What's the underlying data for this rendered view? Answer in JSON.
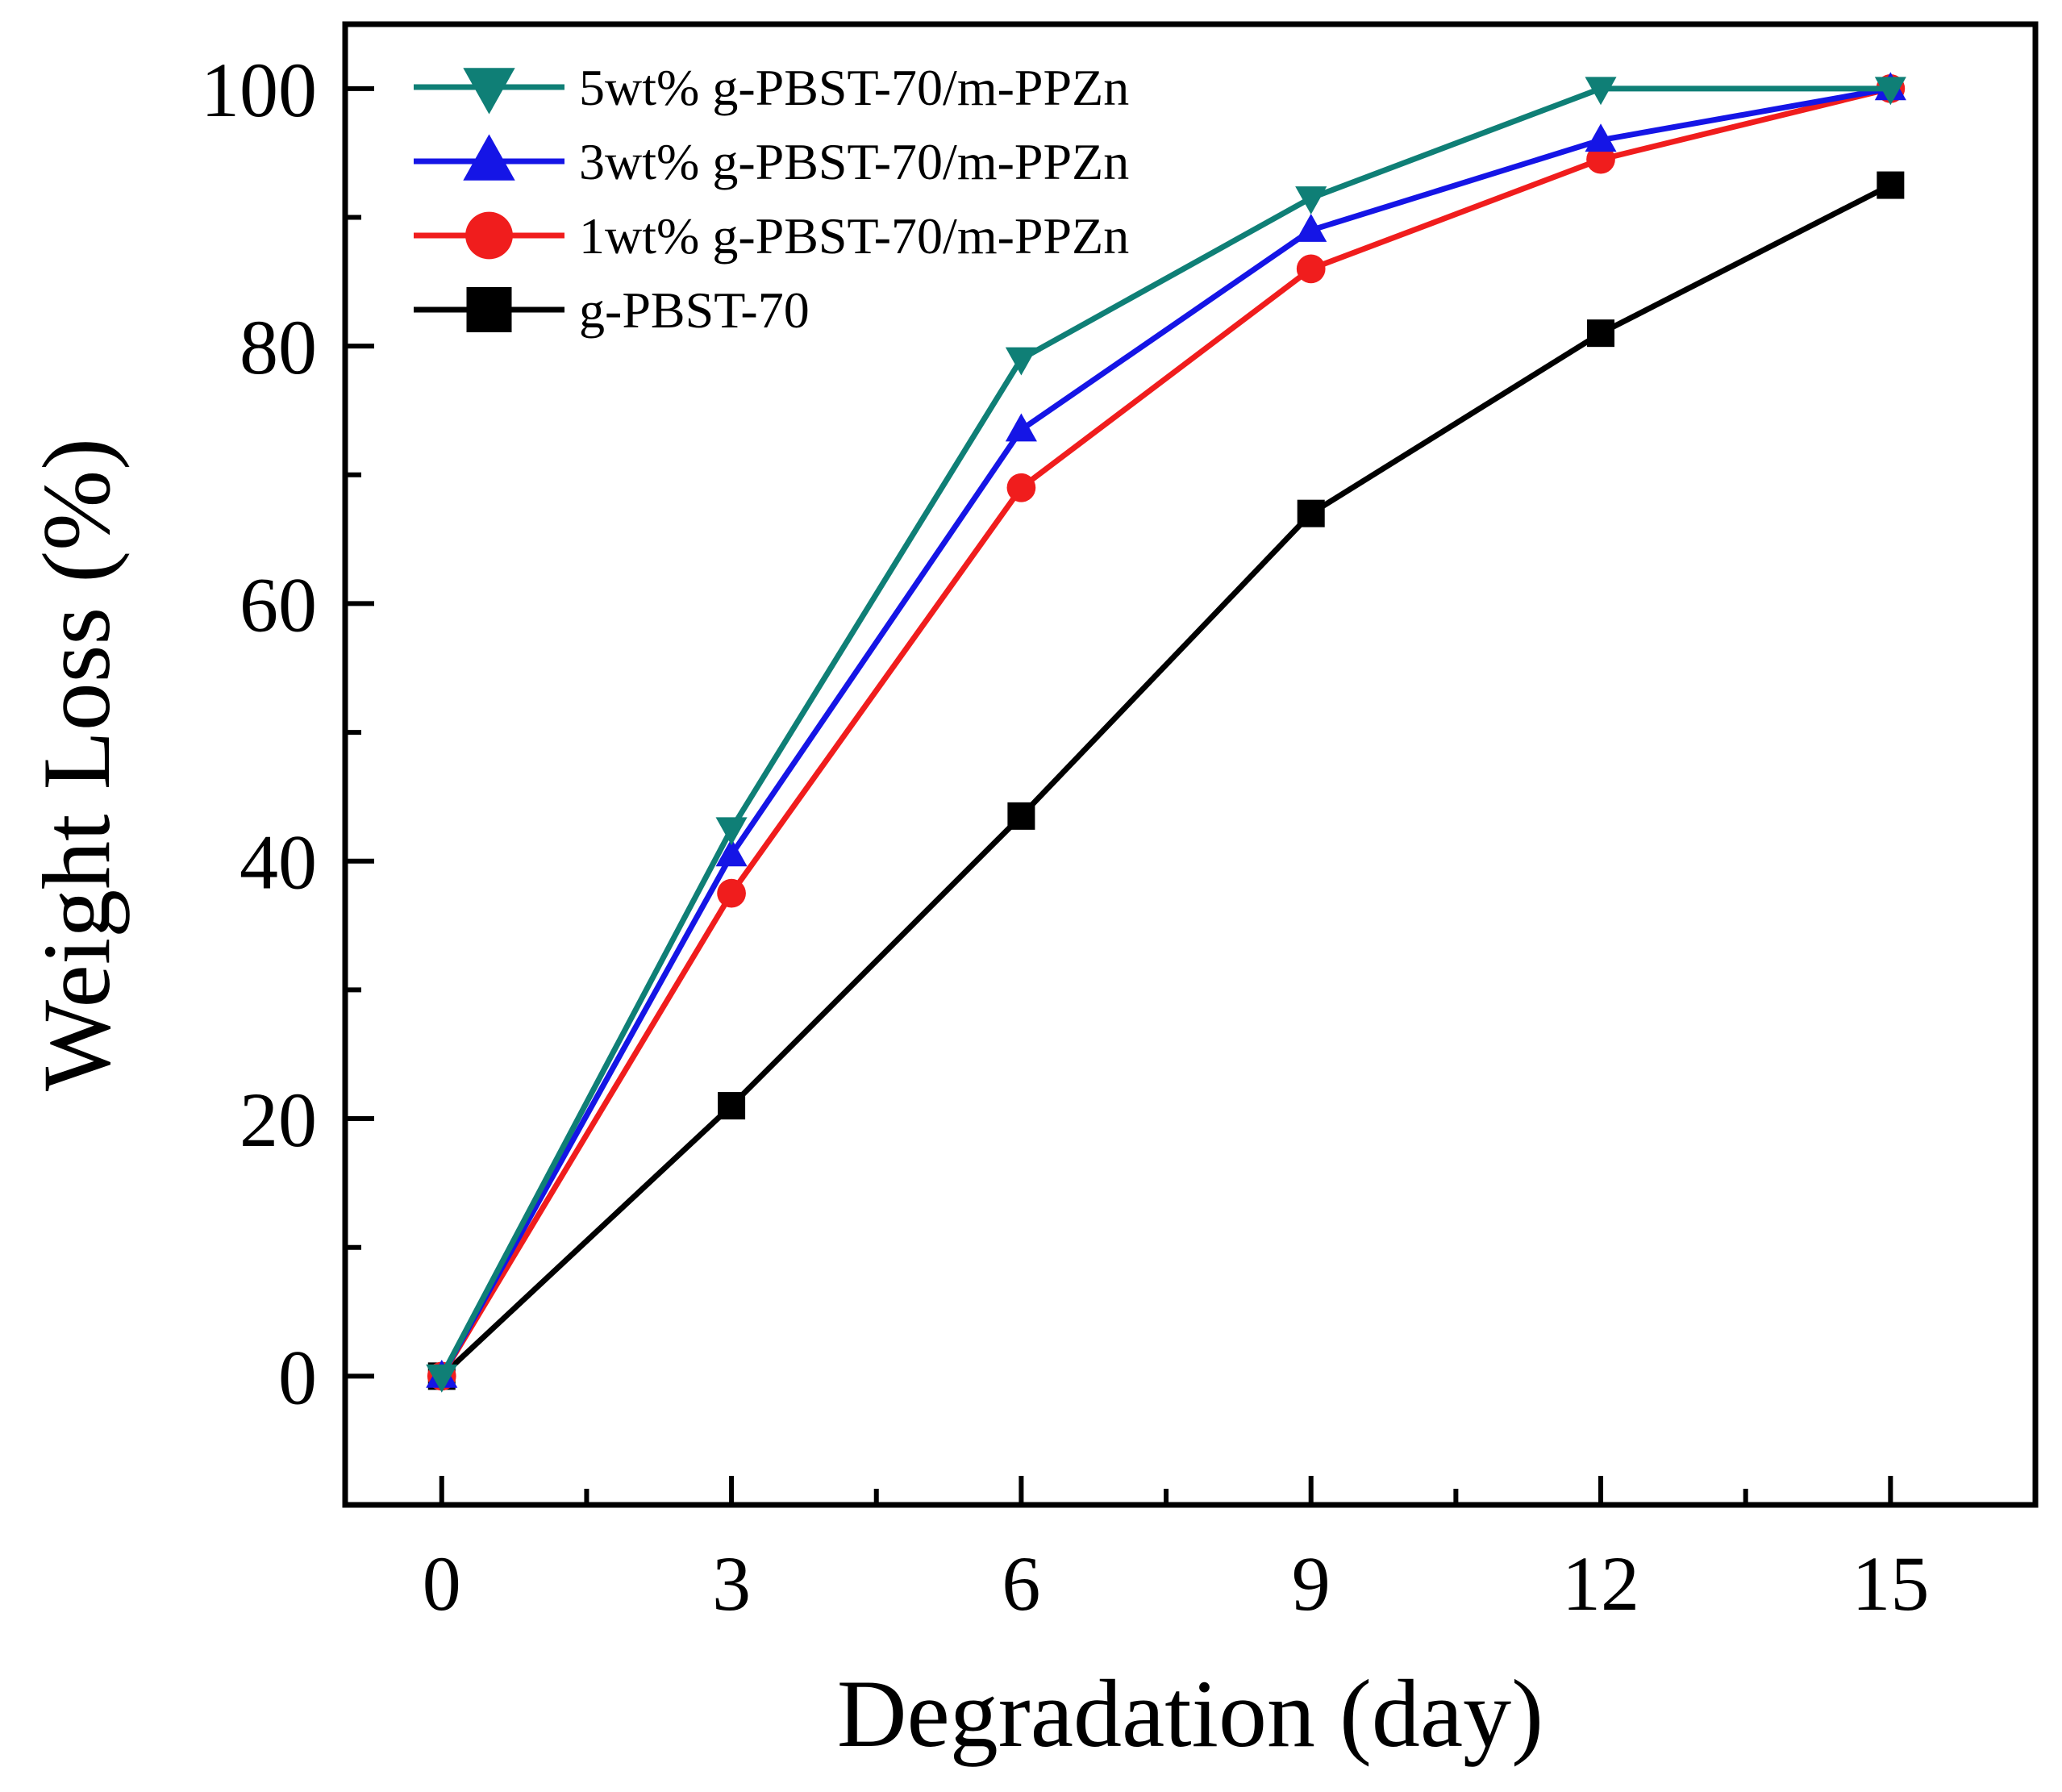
{
  "chart_data": {
    "type": "line",
    "title": "",
    "xlabel": "Degradation (day)",
    "ylabel": "Weight Loss (%)",
    "xlim": [
      -1,
      16.5
    ],
    "ylim": [
      -10,
      105
    ],
    "xticks": [
      0,
      3,
      6,
      9,
      12,
      15
    ],
    "yticks": [
      0,
      20,
      40,
      60,
      80,
      100
    ],
    "x": [
      0,
      3,
      6,
      9,
      12,
      15
    ],
    "grid": false,
    "legend_position": "top-left",
    "series": [
      {
        "name": "5wt% g-PBST-70/m-PPZn",
        "color": "#0f7f76",
        "marker": "triangle-down",
        "values": [
          0,
          42.5,
          79,
          91.5,
          100,
          100
        ]
      },
      {
        "name": "3wt% g-PBST-70/m-PPZn",
        "color": "#1515e6",
        "marker": "triangle-up",
        "values": [
          0,
          40.5,
          73.5,
          89,
          96,
          100
        ]
      },
      {
        "name": "1wt% g-PBST-70/m-PPZn",
        "color": "#f01d1d",
        "marker": "circle",
        "values": [
          0,
          37.5,
          69,
          86,
          94.5,
          100
        ]
      },
      {
        "name": "g-PBST-70",
        "color": "#000000",
        "marker": "square",
        "values": [
          0,
          21,
          43.5,
          67,
          81,
          92.5
        ]
      }
    ]
  }
}
